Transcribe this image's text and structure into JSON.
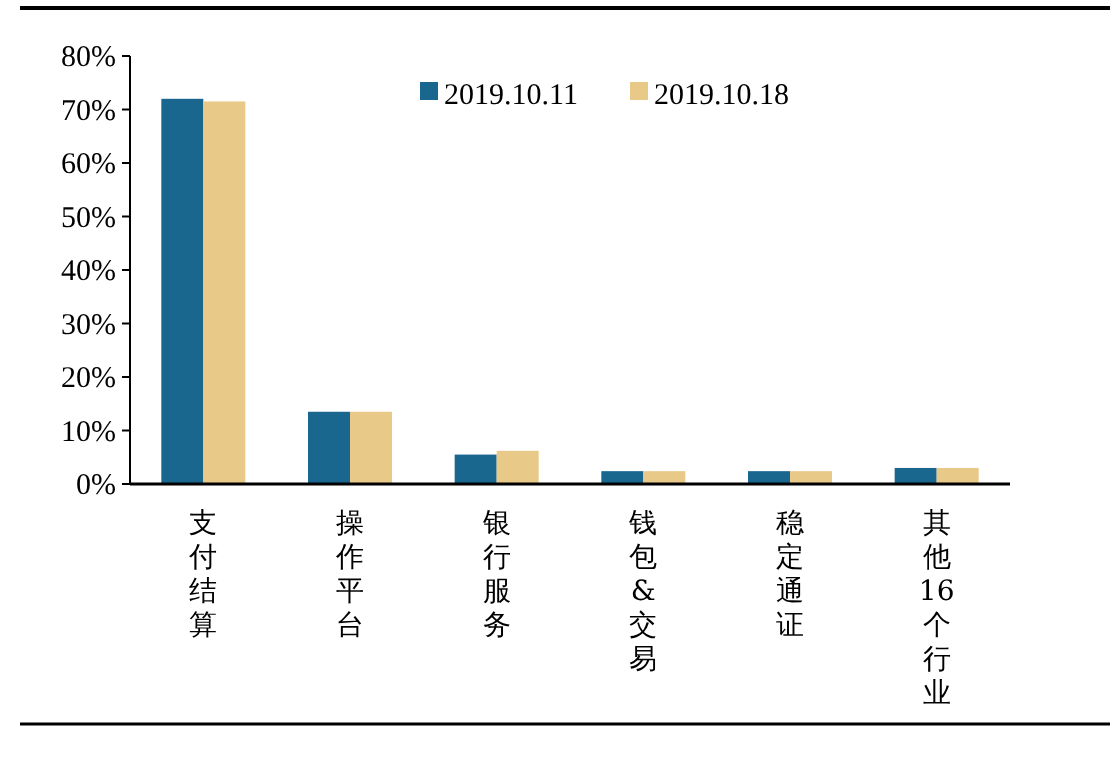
{
  "chart_data": {
    "type": "bar",
    "categories": [
      "支付结算",
      "操作平台",
      "银行服务",
      "钱包&交易",
      "稳定通证",
      "其他16个行业"
    ],
    "series": [
      {
        "name": "2019.10.11",
        "color": "#19668f",
        "values": [
          72,
          13.5,
          5.5,
          2.4,
          2.4,
          3
        ]
      },
      {
        "name": "2019.10.18",
        "color": "#e8c987",
        "values": [
          71.5,
          13.5,
          6.2,
          2.4,
          2.4,
          3
        ]
      }
    ],
    "ylim": [
      0,
      80
    ],
    "yticks": [
      {
        "value": 0,
        "label": "0%"
      },
      {
        "value": 10,
        "label": "10%"
      },
      {
        "value": 20,
        "label": "20%"
      },
      {
        "value": 30,
        "label": "30%"
      },
      {
        "value": 40,
        "label": "40%"
      },
      {
        "value": 50,
        "label": "50%"
      },
      {
        "value": 60,
        "label": "60%"
      },
      {
        "value": 70,
        "label": "70%"
      },
      {
        "value": 80,
        "label": "80%"
      }
    ],
    "legend": "top"
  }
}
